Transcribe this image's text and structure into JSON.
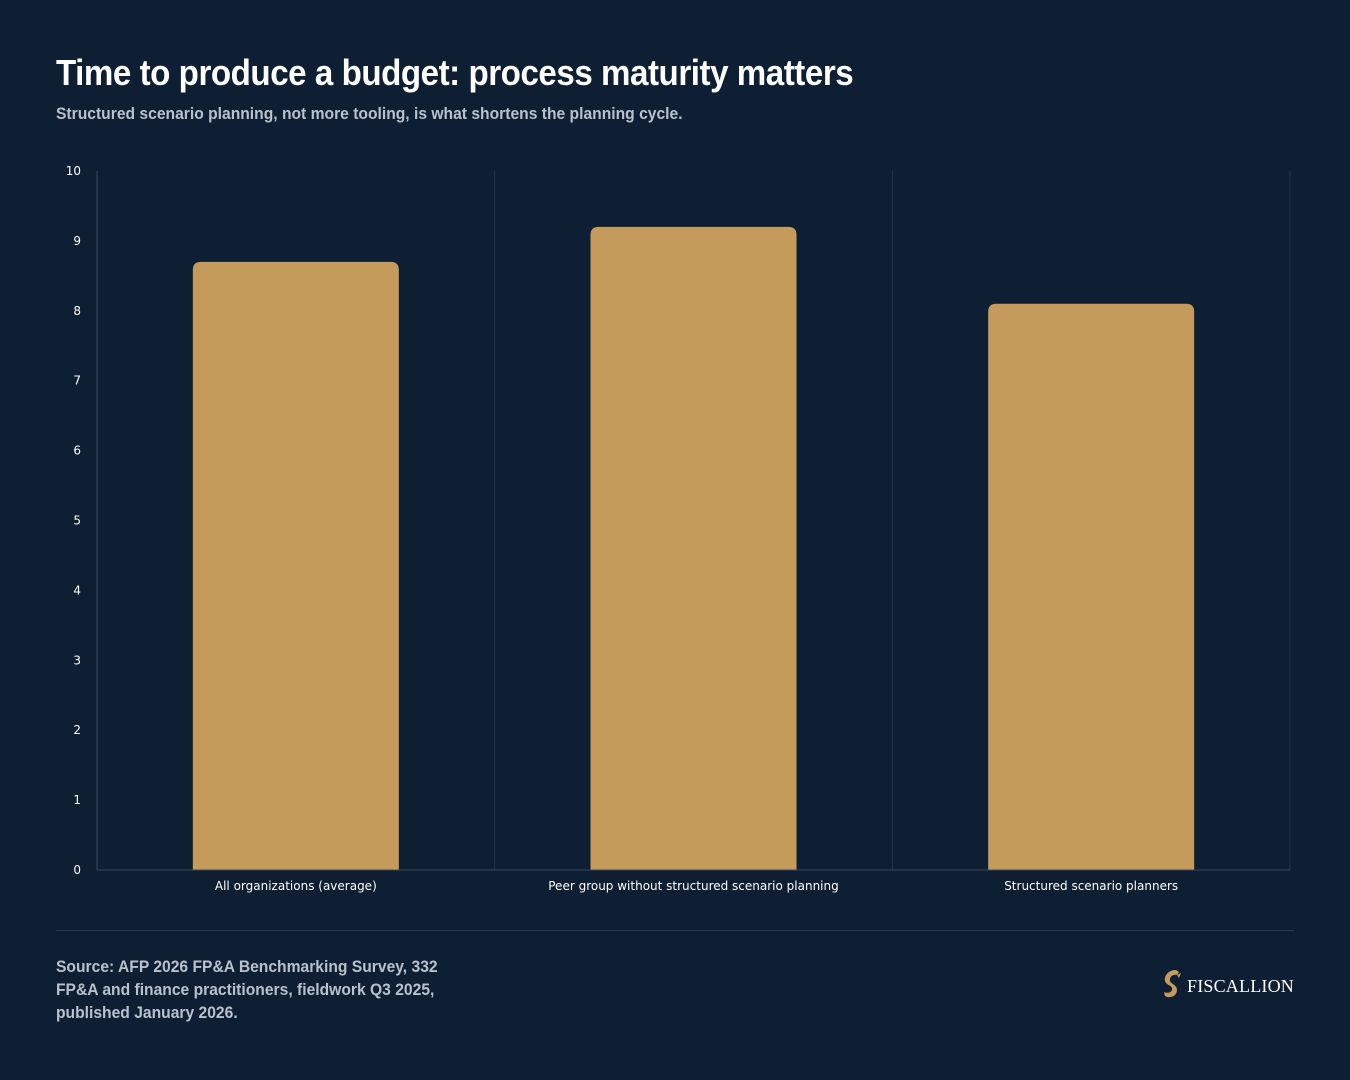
{
  "header": {
    "title": "Time to produce a budget: process maturity matters",
    "subtitle": "Structured scenario planning, not more tooling, is what shortens the planning cycle."
  },
  "chart_data": {
    "type": "bar",
    "categories": [
      "All organizations (average)",
      "Peer group without structured scenario planning",
      "Structured scenario planners"
    ],
    "values": [
      8.7,
      9.2,
      8.1
    ],
    "ylim": [
      0,
      10
    ],
    "yticks": [
      0,
      1,
      2,
      3,
      4,
      5,
      6,
      7,
      8,
      9,
      10
    ],
    "grid": "vertical category separators",
    "colors": {
      "bar": "#c49b5b",
      "background": "#0e1f33",
      "axis": "#3a4a5e"
    }
  },
  "footer": {
    "source": "Source: AFP 2026 FP&A Benchmarking Survey, 332 FP&A and finance practitioners, fieldwork Q3 2025, published January 2026.",
    "brand_name": "FISCALLION",
    "brand_icon": "horse-head-logo",
    "brand_color": "#c49b5b"
  }
}
